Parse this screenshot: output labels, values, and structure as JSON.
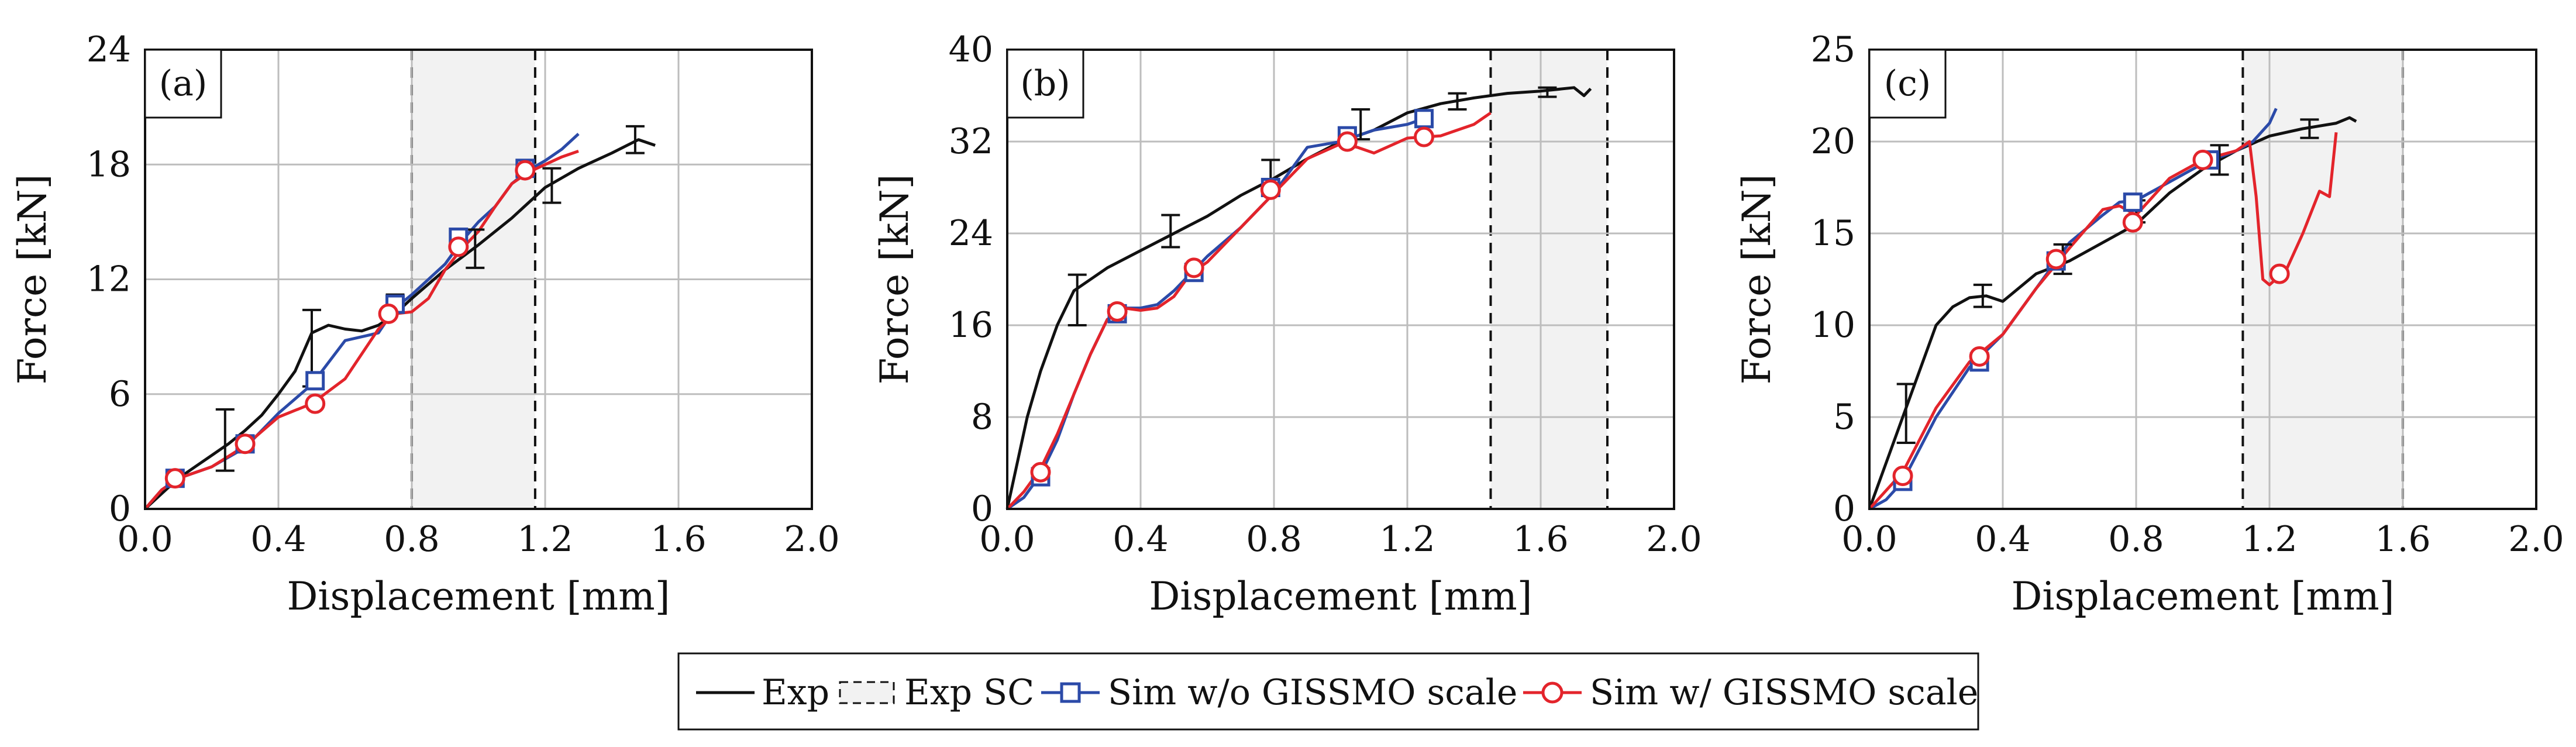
{
  "legend": {
    "exp": "Exp",
    "exp_sc": "Exp SC",
    "sim_wo": "Sim w/o GISSMO scale",
    "sim_w": "Sim w/ GISSMO scale"
  },
  "colors": {
    "exp": "#111111",
    "sim_wo": "#2b4aa8",
    "sim_w": "#e3242b",
    "sc_band": "#f2f2f2",
    "grid": "#bdbdbd"
  },
  "chart_data": [
    {
      "type": "line",
      "panel": "(a)",
      "xlabel": "Displacement [mm]",
      "ylabel": "Force [kN]",
      "xlim": [
        0,
        2.0
      ],
      "ylim": [
        0,
        24
      ],
      "xticks": [
        "0.0",
        "0.4",
        "0.8",
        "1.2",
        "1.6",
        "2.0"
      ],
      "yticks": [
        "0",
        "6",
        "12",
        "18",
        "24"
      ],
      "sc_region": [
        0.8,
        1.17
      ],
      "series": [
        {
          "name": "Exp",
          "x": [
            0,
            0.05,
            0.1,
            0.15,
            0.2,
            0.25,
            0.3,
            0.35,
            0.4,
            0.45,
            0.5,
            0.55,
            0.6,
            0.65,
            0.7,
            0.75,
            0.8,
            0.9,
            1.0,
            1.1,
            1.2,
            1.3,
            1.4,
            1.48,
            1.53
          ],
          "y": [
            0,
            0.8,
            1.6,
            2.2,
            2.8,
            3.4,
            4.1,
            4.9,
            6.0,
            7.2,
            9.2,
            9.6,
            9.4,
            9.3,
            9.6,
            10.2,
            11.0,
            12.5,
            13.8,
            15.2,
            16.8,
            17.8,
            18.6,
            19.3,
            19.0
          ]
        },
        {
          "name": "Sim w/o GISSMO scale",
          "x": [
            0,
            0.05,
            0.1,
            0.2,
            0.3,
            0.4,
            0.5,
            0.6,
            0.7,
            0.75,
            0.8,
            0.9,
            0.95,
            1.0,
            1.05,
            1.1,
            1.15,
            1.2,
            1.25,
            1.3
          ],
          "y": [
            0,
            1.0,
            1.6,
            2.2,
            3.2,
            5.0,
            6.5,
            8.8,
            9.2,
            10.5,
            11.2,
            12.8,
            14.0,
            15.0,
            15.8,
            17.0,
            17.7,
            18.2,
            18.8,
            19.6
          ]
        },
        {
          "name": "Sim w/ GISSMO scale",
          "x": [
            0,
            0.05,
            0.1,
            0.2,
            0.3,
            0.4,
            0.5,
            0.6,
            0.7,
            0.75,
            0.8,
            0.85,
            0.9,
            0.95,
            1.0,
            1.05,
            1.1,
            1.15,
            1.2,
            1.25,
            1.3
          ],
          "y": [
            0,
            1.0,
            1.6,
            2.2,
            3.3,
            4.8,
            5.5,
            6.8,
            9.4,
            10.2,
            10.3,
            11.0,
            12.5,
            13.6,
            14.5,
            15.8,
            17.0,
            17.6,
            18.0,
            18.4,
            18.7
          ]
        }
      ],
      "error_bars": [
        {
          "x": 0.24,
          "y": 3.6,
          "low": 2.0,
          "high": 5.2
        },
        {
          "x": 0.5,
          "y": 8.4,
          "low": 6.4,
          "high": 10.4
        },
        {
          "x": 0.75,
          "y": 10.8,
          "low": 10.4,
          "high": 11.2
        },
        {
          "x": 0.99,
          "y": 13.6,
          "low": 12.6,
          "high": 14.6
        },
        {
          "x": 1.22,
          "y": 16.9,
          "low": 16.0,
          "high": 17.8
        },
        {
          "x": 1.47,
          "y": 19.3,
          "low": 18.6,
          "high": 20.0
        }
      ],
      "markers": [
        {
          "series": "Sim w/o GISSMO scale",
          "x": [
            0.09,
            0.3,
            0.51,
            0.75,
            0.94,
            1.14
          ],
          "y": [
            1.6,
            3.4,
            6.7,
            10.7,
            14.2,
            17.8
          ]
        },
        {
          "series": "Sim w/ GISSMO scale",
          "x": [
            0.09,
            0.3,
            0.51,
            0.73,
            0.94,
            1.14
          ],
          "y": [
            1.6,
            3.4,
            5.5,
            10.2,
            13.7,
            17.7
          ]
        }
      ]
    },
    {
      "type": "line",
      "panel": "(b)",
      "xlabel": "Displacement [mm]",
      "ylabel": "Force [kN]",
      "xlim": [
        0,
        2.0
      ],
      "ylim": [
        0,
        40
      ],
      "xticks": [
        "0.0",
        "0.4",
        "0.8",
        "1.2",
        "1.6",
        "2.0"
      ],
      "yticks": [
        "0",
        "8",
        "16",
        "24",
        "32",
        "40"
      ],
      "sc_region": [
        1.45,
        1.8
      ],
      "series": [
        {
          "name": "Exp",
          "x": [
            0,
            0.03,
            0.06,
            0.1,
            0.15,
            0.2,
            0.25,
            0.3,
            0.4,
            0.5,
            0.6,
            0.7,
            0.8,
            0.9,
            1.0,
            1.1,
            1.2,
            1.3,
            1.4,
            1.5,
            1.6,
            1.7,
            1.73,
            1.75
          ],
          "y": [
            0,
            4.0,
            8.0,
            12.0,
            16.0,
            19.0,
            20.0,
            21.0,
            22.5,
            24.0,
            25.5,
            27.3,
            28.8,
            30.5,
            32.0,
            33.0,
            34.5,
            35.3,
            35.8,
            36.2,
            36.4,
            36.7,
            36.0,
            36.6
          ]
        },
        {
          "name": "Sim w/o GISSMO scale",
          "x": [
            0,
            0.05,
            0.1,
            0.15,
            0.2,
            0.25,
            0.3,
            0.35,
            0.4,
            0.45,
            0.5,
            0.55,
            0.6,
            0.7,
            0.8,
            0.85,
            0.9,
            1.0,
            1.1,
            1.2,
            1.25
          ],
          "y": [
            0,
            1.0,
            3.0,
            6.0,
            10.0,
            13.5,
            16.5,
            17.5,
            17.5,
            17.8,
            19.0,
            20.5,
            22.0,
            24.5,
            27.5,
            29.5,
            31.5,
            32.0,
            33.0,
            33.5,
            34.0
          ]
        },
        {
          "name": "Sim w/ GISSMO scale",
          "x": [
            0,
            0.05,
            0.1,
            0.15,
            0.2,
            0.25,
            0.3,
            0.35,
            0.4,
            0.45,
            0.5,
            0.55,
            0.6,
            0.7,
            0.8,
            0.9,
            1.0,
            1.05,
            1.1,
            1.2,
            1.3,
            1.35,
            1.4,
            1.45
          ],
          "y": [
            0,
            1.5,
            3.5,
            6.5,
            10.0,
            13.5,
            16.5,
            17.5,
            17.3,
            17.5,
            18.5,
            20.5,
            21.5,
            24.5,
            27.5,
            30.5,
            31.8,
            31.5,
            31.0,
            32.3,
            32.5,
            33.0,
            33.5,
            34.5
          ]
        }
      ],
      "error_bars": [
        {
          "x": 0.21,
          "y": 18.2,
          "low": 16.0,
          "high": 20.4
        },
        {
          "x": 0.49,
          "y": 24.2,
          "low": 22.8,
          "high": 25.6
        },
        {
          "x": 0.79,
          "y": 29.0,
          "low": 27.6,
          "high": 30.4
        },
        {
          "x": 1.06,
          "y": 33.5,
          "low": 32.2,
          "high": 34.8
        },
        {
          "x": 1.35,
          "y": 35.5,
          "low": 34.8,
          "high": 36.2
        },
        {
          "x": 1.62,
          "y": 36.3,
          "low": 35.9,
          "high": 36.7
        }
      ],
      "markers": [
        {
          "series": "Sim w/o GISSMO scale",
          "x": [
            0.1,
            0.33,
            0.56,
            0.79,
            1.02,
            1.25
          ],
          "y": [
            2.8,
            17.0,
            20.6,
            28.0,
            32.5,
            34.0
          ]
        },
        {
          "series": "Sim w/ GISSMO scale",
          "x": [
            0.1,
            0.33,
            0.56,
            0.79,
            1.02,
            1.25
          ],
          "y": [
            3.2,
            17.2,
            21.0,
            27.8,
            32.0,
            32.4
          ]
        }
      ]
    },
    {
      "type": "line",
      "panel": "(c)",
      "xlabel": "Displacement [mm]",
      "ylabel": "Force [kN]",
      "xlim": [
        0,
        2.0
      ],
      "ylim": [
        0,
        25
      ],
      "xticks": [
        "0.0",
        "0.4",
        "0.8",
        "1.2",
        "1.6",
        "2.0"
      ],
      "yticks": [
        "0",
        "5",
        "10",
        "15",
        "20",
        "25"
      ],
      "sc_region": [
        1.12,
        1.6
      ],
      "series": [
        {
          "name": "Exp",
          "x": [
            0,
            0.03,
            0.06,
            0.1,
            0.15,
            0.2,
            0.25,
            0.3,
            0.35,
            0.4,
            0.5,
            0.6,
            0.7,
            0.8,
            0.9,
            1.0,
            1.1,
            1.2,
            1.3,
            1.4,
            1.44,
            1.46
          ],
          "y": [
            0,
            1.5,
            3.0,
            5.0,
            7.5,
            10.0,
            11.0,
            11.5,
            11.6,
            11.3,
            12.8,
            13.5,
            14.5,
            15.5,
            17.2,
            18.5,
            19.5,
            20.3,
            20.7,
            21.0,
            21.3,
            21.1
          ]
        },
        {
          "name": "Sim w/o GISSMO scale",
          "x": [
            0,
            0.05,
            0.1,
            0.2,
            0.3,
            0.4,
            0.5,
            0.6,
            0.7,
            0.75,
            0.8,
            0.9,
            1.0,
            1.1,
            1.15,
            1.2,
            1.22
          ],
          "y": [
            0,
            0.5,
            1.5,
            5.0,
            7.7,
            9.5,
            12.0,
            14.5,
            16.0,
            16.7,
            16.8,
            17.8,
            18.8,
            19.5,
            20.0,
            21.0,
            21.8
          ]
        },
        {
          "name": "Sim w/ GISSMO scale",
          "x": [
            0,
            0.05,
            0.1,
            0.2,
            0.3,
            0.4,
            0.5,
            0.6,
            0.7,
            0.75,
            0.8,
            0.9,
            1.0,
            1.1,
            1.14,
            1.16,
            1.18,
            1.2,
            1.25,
            1.3,
            1.35,
            1.38,
            1.4
          ],
          "y": [
            0,
            1.0,
            2.0,
            5.5,
            8.0,
            9.5,
            12.0,
            14.2,
            16.3,
            16.5,
            16.0,
            18.0,
            19.0,
            19.5,
            20.0,
            17.0,
            12.5,
            12.2,
            13.0,
            15.0,
            17.3,
            17.0,
            20.5
          ]
        }
      ],
      "error_bars": [
        {
          "x": 0.11,
          "y": 5.2,
          "low": 3.6,
          "high": 6.8
        },
        {
          "x": 0.34,
          "y": 11.5,
          "low": 11.0,
          "high": 12.2
        },
        {
          "x": 0.58,
          "y": 13.6,
          "low": 12.8,
          "high": 14.4
        },
        {
          "x": 0.8,
          "y": 16.2,
          "low": 15.6,
          "high": 16.8
        },
        {
          "x": 1.05,
          "y": 19.0,
          "low": 18.2,
          "high": 19.8
        },
        {
          "x": 1.32,
          "y": 20.6,
          "low": 20.2,
          "high": 21.2
        }
      ],
      "markers": [
        {
          "series": "Sim w/o GISSMO scale",
          "x": [
            0.1,
            0.33,
            0.56,
            0.79,
            1.02
          ],
          "y": [
            1.5,
            8.0,
            13.5,
            16.7,
            19.0
          ]
        },
        {
          "series": "Sim w/ GISSMO scale",
          "x": [
            0.1,
            0.33,
            0.56,
            0.79,
            1.0,
            1.23
          ],
          "y": [
            1.8,
            8.3,
            13.6,
            15.6,
            19.0,
            12.8
          ]
        }
      ]
    }
  ]
}
